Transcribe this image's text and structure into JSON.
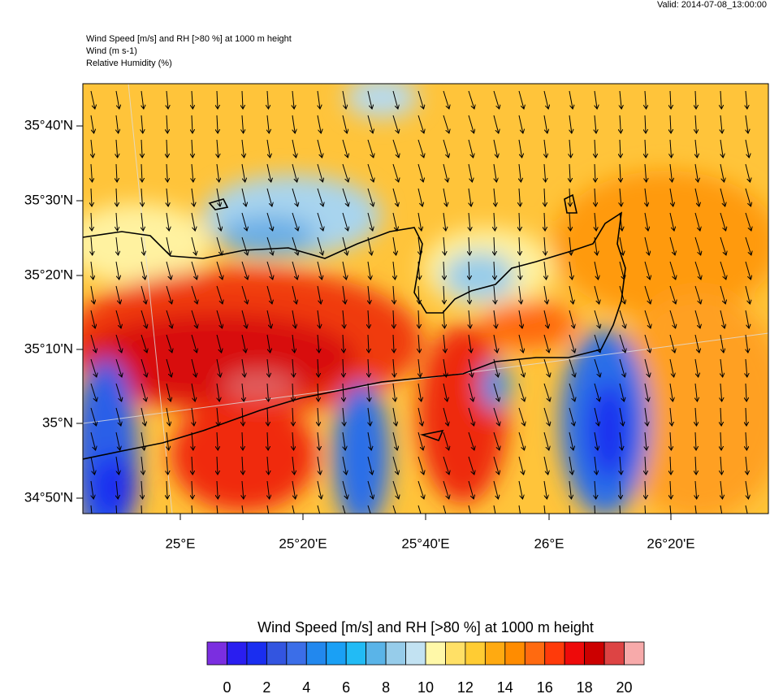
{
  "header": {
    "valid": "Valid: 2014-07-08_13:00:00",
    "lines": [
      "Wind Speed [m/s] and RH [>80 %] at 1000 m height",
      "Wind   (m s-1)",
      "Relative Humidity   (%)"
    ]
  },
  "map": {
    "lat_labels": [
      "35°40'N",
      "35°30'N",
      "35°20'N",
      "35°10'N",
      "35°N",
      "34°50'N"
    ],
    "lon_labels": [
      "25°E",
      "25°20'E",
      "25°40'E",
      "26°E",
      "26°20'E"
    ]
  },
  "colorbar": {
    "title": "Wind Speed [m/s] and RH [>80 %] at 1000 m height",
    "labels": [
      "0",
      "2",
      "4",
      "6",
      "8",
      "10",
      "12",
      "14",
      "16",
      "18",
      "20"
    ],
    "colors": [
      "#7b2ee0",
      "#2a1ef0",
      "#1a2ef0",
      "#3355e0",
      "#3b6ee8",
      "#2288ee",
      "#1aa0f5",
      "#22bbf5",
      "#5ab4e8",
      "#96ccea",
      "#c2e2f2",
      "#fff8a8",
      "#ffe066",
      "#ffcc33",
      "#ffaa11",
      "#ff8c00",
      "#ff6a10",
      "#ff3a0a",
      "#ee0a0a",
      "#cc0000",
      "#dd4444",
      "#f7aaaa"
    ]
  }
}
